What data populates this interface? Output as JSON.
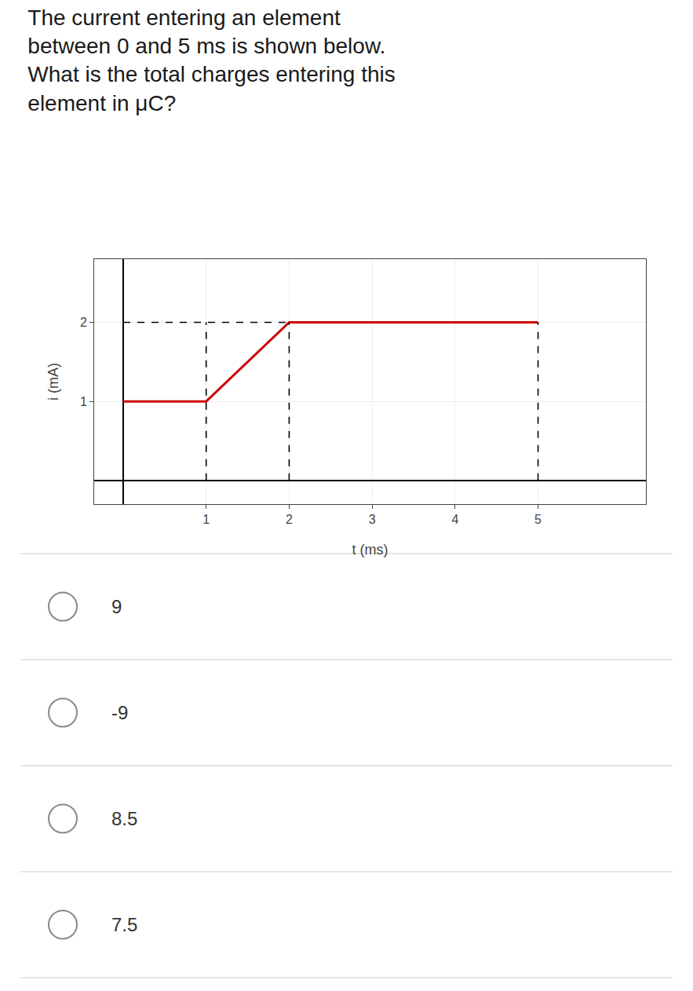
{
  "chart_data": {
    "type": "line",
    "title": "The current entering an element\nbetween 0 and 5 ms is shown below.\nWhat is the total charges entering this\nelement in μC?",
    "xlabel": "t (ms)",
    "ylabel": "i (mA)",
    "series": [
      {
        "x": [
          0,
          1,
          2,
          5
        ],
        "values": [
          1,
          1,
          2,
          2
        ],
        "color": "#cc0000",
        "line_style": "solid"
      },
      {
        "x": [
          0.0,
          2.0
        ],
        "values": [
          2,
          2
        ],
        "color": "#000000",
        "line_style": "dashed"
      },
      {
        "x": [
          1,
          1
        ],
        "values": [
          0,
          2
        ],
        "color": "#000000",
        "line_style": "dashed"
      },
      {
        "x": [
          2,
          2
        ],
        "values": [
          0,
          2
        ],
        "color": "#000000",
        "line_style": "dashed"
      },
      {
        "x": [
          5,
          5
        ],
        "values": [
          0,
          2
        ],
        "color": "#000000",
        "line_style": "dashed"
      }
    ],
    "xlim": [
      -0.35,
      6.3
    ],
    "xticks": [
      1,
      2,
      3,
      4,
      5
    ],
    "ylim": [
      -0.3,
      2.8
    ],
    "yticks": [
      1,
      2
    ],
    "grid": true,
    "annotations": [
      "9",
      "-9",
      "8.5",
      "7.5"
    ]
  }
}
